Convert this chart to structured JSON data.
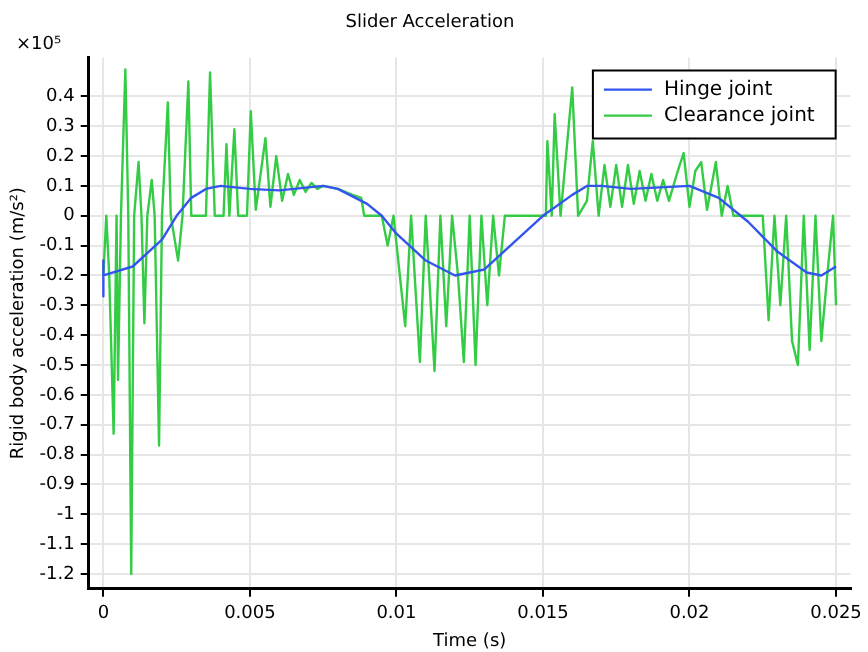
{
  "chart_data": {
    "type": "line",
    "title": "Slider Acceleration",
    "xlabel": "Time (s)",
    "ylabel": "Rigid body acceleration (m/s²)",
    "annotations": [
      "×10⁵"
    ],
    "xlim": [
      -0.0005,
      0.0255
    ],
    "xticks": [
      0,
      0.005,
      0.01,
      0.015,
      0.02,
      0.025
    ],
    "ylim": [
      -1.25,
      0.53
    ],
    "yticks": [
      -1.2,
      -1.1,
      -1,
      -0.9,
      -0.8,
      -0.7,
      -0.6,
      -0.5,
      -0.4,
      -0.3,
      -0.2,
      -0.1,
      0,
      0.1,
      0.2,
      0.3,
      0.4
    ],
    "grid": true,
    "legend": "top right",
    "marker": "none",
    "line_style": "solid",
    "series": [
      {
        "name": "Hinge joint",
        "color": "#3355ee",
        "x": [
          0,
          0,
          0,
          0.001,
          0.002,
          0.0025,
          0.003,
          0.0035,
          0.004,
          0.005,
          0.006,
          0.007,
          0.0075,
          0.008,
          0.009,
          0.0095,
          0.01,
          0.011,
          0.012,
          0.013,
          0.014,
          0.015,
          0.016,
          0.0165,
          0.017,
          0.018,
          0.019,
          0.02,
          0.021,
          0.022,
          0.023,
          0.024,
          0.0245,
          0.025
        ],
        "values": [
          -0.15,
          -0.27,
          -0.2,
          -0.17,
          -0.08,
          0,
          0.06,
          0.09,
          0.1,
          0.09,
          0.085,
          0.095,
          0.1,
          0.09,
          0.04,
          0,
          -0.06,
          -0.15,
          -0.2,
          -0.18,
          -0.09,
          0,
          0.07,
          0.1,
          0.1,
          0.09,
          0.095,
          0.1,
          0.06,
          -0.02,
          -0.12,
          -0.19,
          -0.2,
          -0.17
        ]
      },
      {
        "name": "Clearance joint",
        "color": "#33cc44",
        "x": [
          0,
          0.0001,
          0.0002,
          0.00035,
          0.00045,
          0.0005,
          0.0006,
          0.00075,
          0.00085,
          0.00095,
          0.00105,
          0.0012,
          0.0013,
          0.0014,
          0.0015,
          0.00165,
          0.00175,
          0.0019,
          0.002,
          0.0022,
          0.0023,
          0.00255,
          0.0027,
          0.0029,
          0.003,
          0.0035,
          0.00364,
          0.0038,
          0.0041,
          0.0042,
          0.0043,
          0.00447,
          0.0046,
          0.0049,
          0.00503,
          0.0052,
          0.00553,
          0.0057,
          0.0059,
          0.0061,
          0.0063,
          0.0065,
          0.0067,
          0.0069,
          0.0071,
          0.0073,
          0.0075,
          0.008,
          0.0085,
          0.0088,
          0.0089,
          0.0095,
          0.0097,
          0.0099,
          0.0103,
          0.0105,
          0.0108,
          0.011,
          0.0113,
          0.0115,
          0.0117,
          0.0119,
          0.0121,
          0.0123,
          0.0125,
          0.0127,
          0.0129,
          0.0131,
          0.0133,
          0.0135,
          0.0137,
          0.0145,
          0.0151,
          0.01515,
          0.0153,
          0.0154,
          0.0156,
          0.016,
          0.0162,
          0.0165,
          0.0167,
          0.0169,
          0.0171,
          0.0173,
          0.0175,
          0.0177,
          0.0179,
          0.0181,
          0.0183,
          0.0185,
          0.0187,
          0.0189,
          0.0191,
          0.0193,
          0.0196,
          0.0198,
          0.02,
          0.0202,
          0.0204,
          0.0206,
          0.0209,
          0.0211,
          0.0213,
          0.0215,
          0.022,
          0.0225,
          0.0227,
          0.0229,
          0.0231,
          0.0233,
          0.0235,
          0.0237,
          0.0239,
          0.0241,
          0.0243,
          0.0245,
          0.0247,
          0.0249,
          0.025
        ],
        "values": [
          -0.2,
          0,
          -0.2,
          -0.73,
          0,
          -0.55,
          0,
          0.49,
          0,
          -1.2,
          0,
          0.18,
          0,
          -0.36,
          0,
          0.12,
          0,
          -0.77,
          0,
          0.38,
          0,
          -0.15,
          0,
          0.45,
          0,
          0,
          0.48,
          0,
          0,
          0.24,
          0,
          0.29,
          0,
          0,
          0.35,
          0.02,
          0.26,
          0.03,
          0.2,
          0.05,
          0.14,
          0.07,
          0.12,
          0.08,
          0.11,
          0.09,
          0.1,
          0.09,
          0.07,
          0.06,
          0,
          0,
          -0.1,
          0,
          -0.37,
          0,
          -0.49,
          0,
          -0.52,
          0,
          -0.37,
          0,
          -0.2,
          -0.49,
          0,
          -0.5,
          0,
          -0.3,
          0,
          -0.2,
          0,
          0,
          0,
          0.25,
          0,
          0.34,
          0,
          0.43,
          0,
          0.05,
          0.25,
          0,
          0.17,
          0.03,
          0.17,
          0.03,
          0.17,
          0.04,
          0.15,
          0.05,
          0.14,
          0.05,
          0.12,
          0.05,
          0.15,
          0.21,
          0.03,
          0.15,
          0.18,
          0.02,
          0.18,
          0,
          0.1,
          0,
          0,
          0,
          -0.35,
          0,
          -0.3,
          0,
          -0.42,
          -0.5,
          0,
          -0.45,
          0,
          -0.42,
          -0.2,
          0,
          -0.3
        ]
      }
    ]
  }
}
